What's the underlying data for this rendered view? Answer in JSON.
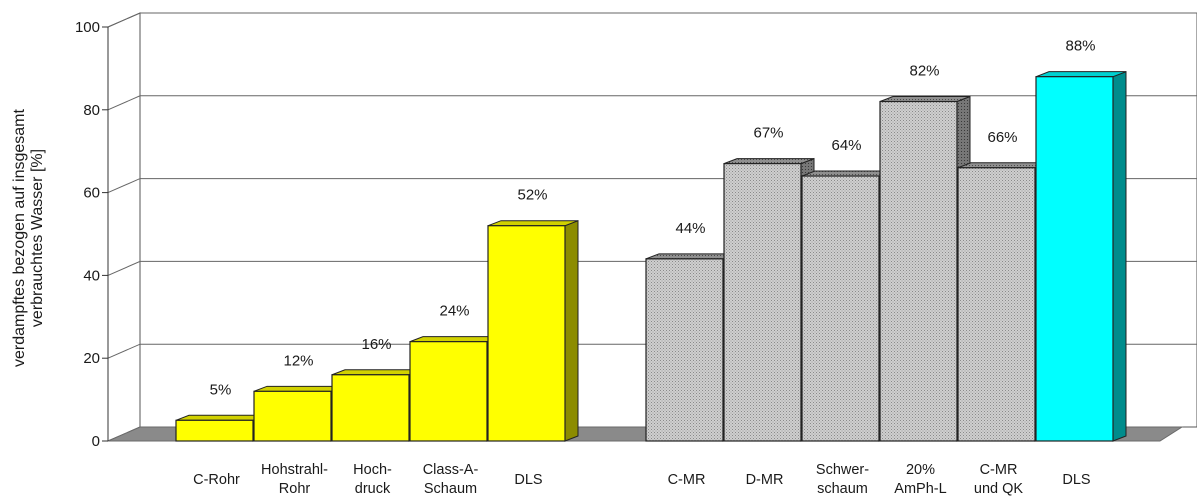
{
  "chart_data": {
    "type": "bar",
    "ylabel_lines": [
      "verdampftes bezogen auf insgesamt",
      "verbrauchtes Wasser  [%]"
    ],
    "ylim": [
      0,
      100
    ],
    "yticks": [
      "0",
      "20",
      "40",
      "60",
      "80",
      "100"
    ],
    "grid": true,
    "bars": [
      {
        "label_lines": [
          "C-Rohr"
        ],
        "value": 5,
        "value_label": "5%",
        "color": "#ffff00",
        "group": 1
      },
      {
        "label_lines": [
          "Hohstrahl-",
          "Rohr"
        ],
        "value": 12,
        "value_label": "12%",
        "color": "#ffff00",
        "group": 1
      },
      {
        "label_lines": [
          "Hoch-",
          "druck"
        ],
        "value": 16,
        "value_label": "16%",
        "color": "#ffff00",
        "group": 1
      },
      {
        "label_lines": [
          "Class-A-",
          "Schaum"
        ],
        "value": 24,
        "value_label": "24%",
        "color": "#ffff00",
        "group": 1
      },
      {
        "label_lines": [
          "DLS"
        ],
        "value": 52,
        "value_label": "52%",
        "color": "#ffff00",
        "group": 1
      },
      {
        "label_lines": [
          "C-MR"
        ],
        "value": 44,
        "value_label": "44%",
        "color": "#c8c8c8",
        "group": 2
      },
      {
        "label_lines": [
          "D-MR"
        ],
        "value": 67,
        "value_label": "67%",
        "color": "#c8c8c8",
        "group": 2
      },
      {
        "label_lines": [
          "Schwer-",
          "schaum"
        ],
        "value": 64,
        "value_label": "64%",
        "color": "#c8c8c8",
        "group": 2
      },
      {
        "label_lines": [
          "20%",
          "AmPh-L"
        ],
        "value": 82,
        "value_label": "82%",
        "color": "#c8c8c8",
        "group": 2
      },
      {
        "label_lines": [
          "C-MR",
          "und QK"
        ],
        "value": 66,
        "value_label": "66%",
        "color": "#c8c8c8",
        "group": 2
      },
      {
        "label_lines": [
          "DLS"
        ],
        "value": 88,
        "value_label": "88%",
        "color": "#00ffff",
        "group": 2
      }
    ]
  }
}
